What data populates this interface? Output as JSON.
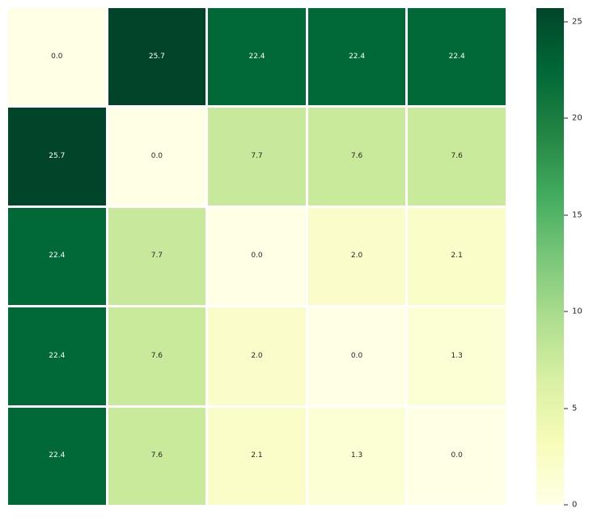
{
  "chart_data": {
    "type": "heatmap",
    "rows": 5,
    "cols": 5,
    "matrix": [
      [
        0.0,
        25.7,
        22.4,
        22.4,
        22.4
      ],
      [
        25.7,
        0.0,
        7.7,
        7.6,
        7.6
      ],
      [
        22.4,
        7.7,
        0.0,
        2.0,
        2.1
      ],
      [
        22.4,
        7.6,
        2.0,
        0.0,
        1.3
      ],
      [
        22.4,
        7.6,
        2.1,
        1.3,
        0.0
      ]
    ],
    "annotated": true,
    "annot_decimals": 1,
    "vmin": 0,
    "vmax": 25.7,
    "title": "",
    "xlabel": "",
    "ylabel": "",
    "x_ticklabels": [],
    "y_ticklabels": [],
    "grid_line_color": "#ffffff",
    "colormap": {
      "name": "YlGn",
      "stops": [
        "#ffffe5",
        "#f7fcb9",
        "#d9f0a3",
        "#addd8e",
        "#78c679",
        "#41ab5d",
        "#238443",
        "#006837",
        "#004529"
      ]
    },
    "annotation_colors": {
      "on_light": "#262626",
      "on_dark": "#ffffff"
    },
    "colorbar": {
      "position": "right",
      "ticks": [
        0,
        5,
        10,
        15,
        20,
        25
      ],
      "tick_color": "#262626"
    }
  }
}
